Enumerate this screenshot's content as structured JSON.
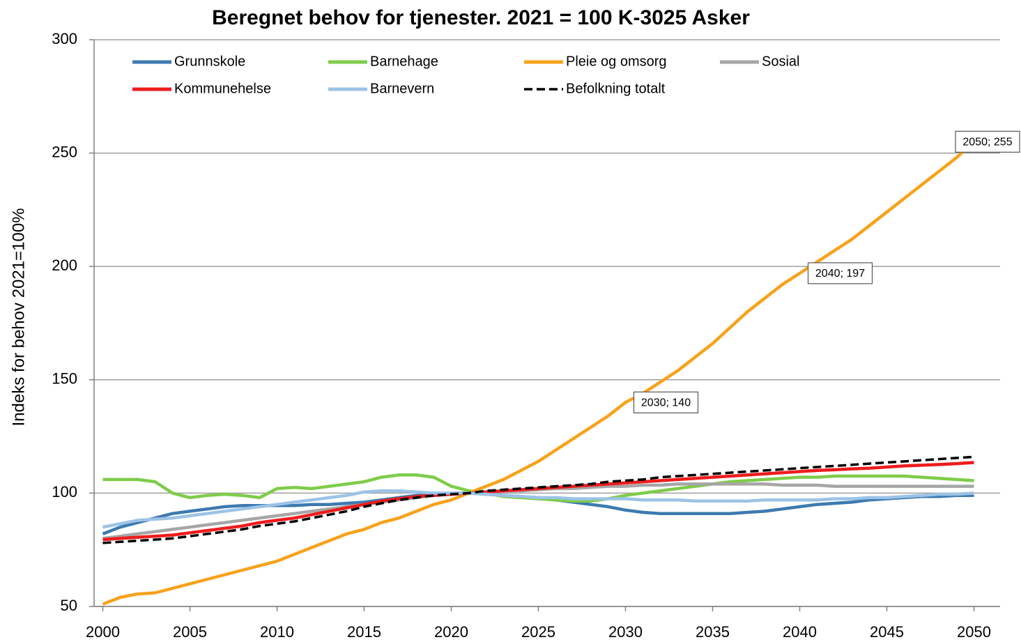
{
  "chart_data": {
    "type": "line",
    "title": "Beregnet behov for tjenester.  2021 = 100  K-3025 Asker",
    "y_label": "Indeks for behov 2021=100%",
    "x": [
      2000,
      2001,
      2002,
      2003,
      2004,
      2005,
      2006,
      2007,
      2008,
      2009,
      2010,
      2011,
      2012,
      2013,
      2014,
      2015,
      2016,
      2017,
      2018,
      2019,
      2020,
      2021,
      2022,
      2023,
      2024,
      2025,
      2026,
      2027,
      2028,
      2029,
      2030,
      2031,
      2032,
      2033,
      2034,
      2035,
      2036,
      2037,
      2038,
      2039,
      2040,
      2041,
      2042,
      2043,
      2044,
      2045,
      2046,
      2047,
      2048,
      2049,
      2050
    ],
    "xlim": [
      1999.5,
      2051.5
    ],
    "xticks": [
      2000,
      2005,
      2010,
      2015,
      2020,
      2025,
      2030,
      2035,
      2040,
      2045,
      2050
    ],
    "ylim": [
      50,
      300
    ],
    "yticks": [
      50,
      100,
      150,
      200,
      250,
      300
    ],
    "grid": true,
    "legend": "top",
    "series": [
      {
        "name": "Grunnskole",
        "color": "#3d7ab0",
        "values": [
          82,
          85,
          87,
          89,
          91,
          92,
          93,
          94,
          94.5,
          94.5,
          94.5,
          94.5,
          95,
          95,
          95.5,
          96,
          97,
          98,
          99,
          99.5,
          100,
          100,
          99.5,
          99,
          98.5,
          98,
          97,
          96,
          95,
          94,
          92.5,
          91.5,
          91,
          91,
          91,
          91,
          91,
          91.5,
          92,
          93,
          94,
          95,
          95.5,
          96,
          97,
          97.5,
          98,
          98.5,
          98.5,
          99,
          99
        ]
      },
      {
        "name": "Barnehage",
        "color": "#7fcc4a",
        "values": [
          106,
          106,
          106,
          105,
          100,
          98,
          99,
          99.5,
          99,
          98,
          102,
          102.5,
          102,
          103,
          104,
          105,
          107,
          108,
          108,
          107,
          103,
          101,
          100,
          98.5,
          98,
          97.5,
          97,
          96.5,
          96.5,
          97.5,
          99,
          100,
          101,
          102,
          103,
          104,
          105,
          105.5,
          106,
          106.5,
          107,
          107,
          107.5,
          107.5,
          107.5,
          107.5,
          107.5,
          107,
          106.5,
          106,
          105.5
        ]
      },
      {
        "name": "Pleie og omsorg",
        "color": "#f7a21b",
        "values": [
          51,
          54,
          55.5,
          56,
          58,
          60,
          62,
          64,
          66,
          68,
          70,
          73,
          76,
          79,
          82,
          84,
          87,
          89,
          92,
          95,
          97,
          100,
          103,
          106,
          110,
          114,
          119,
          124,
          129,
          134,
          140,
          144,
          149,
          154,
          160,
          166,
          173,
          180,
          186,
          192,
          197,
          202,
          207,
          212,
          218,
          224,
          230,
          236,
          242,
          248,
          255
        ]
      },
      {
        "name": "Sosial",
        "color": "#a6a6a6",
        "values": [
          80,
          81,
          82,
          83,
          84,
          85,
          86,
          87,
          88,
          89,
          90,
          91,
          92,
          93,
          94,
          95,
          96,
          97,
          98,
          99,
          99.5,
          100,
          100.5,
          101,
          101,
          101.5,
          102,
          102,
          102.5,
          103,
          103,
          103.5,
          103.5,
          104,
          104,
          104,
          104,
          104,
          104,
          103.5,
          103.5,
          103.5,
          103,
          103,
          103,
          103,
          103,
          103,
          103,
          103,
          103
        ]
      },
      {
        "name": "Kommunehelse",
        "color": "#ee1c1c",
        "values": [
          79.5,
          80,
          80.5,
          81,
          81.5,
          82.5,
          83.5,
          84.5,
          85.5,
          87,
          88,
          89,
          90.5,
          92,
          93.5,
          95,
          96.5,
          97.5,
          98.5,
          99,
          99.5,
          100,
          100.5,
          101,
          101.5,
          102,
          102.5,
          103,
          103.5,
          104,
          104.5,
          105,
          105.5,
          106,
          106.5,
          107,
          107.5,
          108,
          108.5,
          109,
          109.5,
          110,
          110.3,
          110.7,
          111,
          111.5,
          112,
          112.3,
          112.6,
          113,
          113.5
        ]
      },
      {
        "name": "Barnevern",
        "color": "#9cc3e6",
        "values": [
          85,
          86.5,
          88,
          88.5,
          89,
          90,
          91,
          92,
          93,
          94,
          95,
          96,
          97,
          98,
          99,
          100.5,
          101,
          101,
          100.5,
          100,
          100,
          100,
          99.5,
          99,
          98.5,
          98,
          98,
          97.5,
          97.5,
          97.5,
          97.5,
          97,
          97,
          97,
          96.5,
          96.5,
          96.5,
          96.5,
          97,
          97,
          97,
          97,
          97.5,
          97.5,
          98,
          98,
          98.5,
          99,
          99.5,
          99.5,
          100
        ]
      },
      {
        "name": "Befolkning totalt",
        "color": "#000000",
        "dashed": true,
        "values": [
          78,
          78.5,
          79,
          79.5,
          80,
          81,
          82,
          83,
          84,
          85.5,
          86.5,
          87.5,
          89,
          90.5,
          92,
          94,
          95.5,
          97,
          98,
          99,
          99.5,
          100,
          101,
          101.5,
          102,
          102.5,
          103,
          103.5,
          104,
          105,
          105.5,
          106,
          107,
          107.5,
          108,
          108.5,
          109,
          109.5,
          110,
          110.5,
          111,
          111.5,
          112,
          112.5,
          113,
          113.5,
          114,
          114.5,
          115,
          115.5,
          116
        ]
      }
    ],
    "annotations": [
      {
        "x": 2030,
        "y": 140,
        "label": "2030; 140"
      },
      {
        "x": 2040,
        "y": 197,
        "label": "2040; 197"
      },
      {
        "x": 2050,
        "y": 255,
        "label": "2050; 255"
      }
    ]
  }
}
